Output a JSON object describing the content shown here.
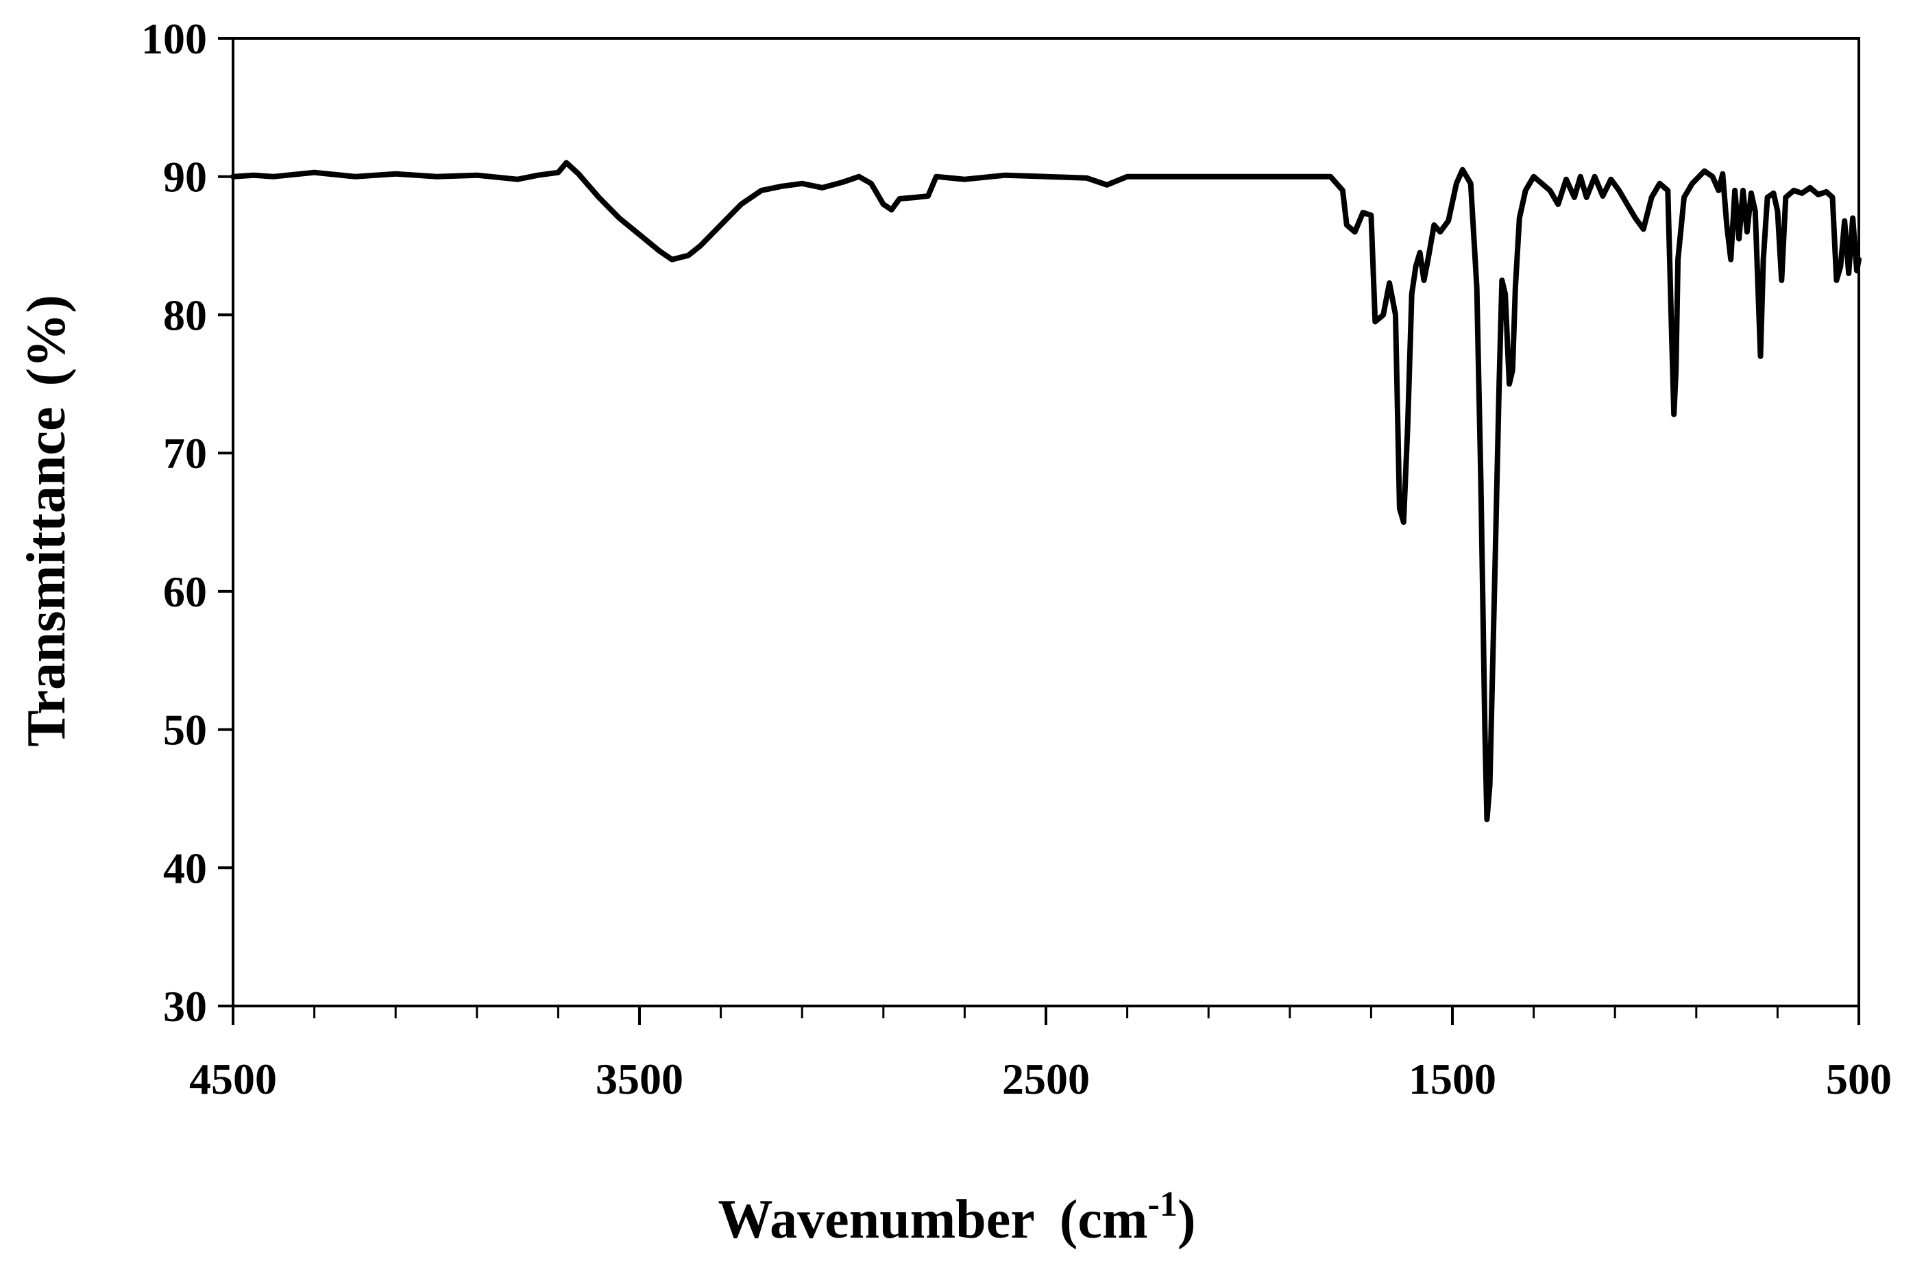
{
  "chart_data": {
    "type": "line",
    "title": "",
    "xlabel": "Wavenumber",
    "xlabel_unit_base": "(cm",
    "xlabel_unit_sup": "-1",
    "xlabel_unit_close": ")",
    "ylabel": "Transmittance",
    "ylabel_unit": "(%)",
    "xlim": [
      4500,
      500
    ],
    "ylim": [
      30,
      100
    ],
    "x_reversed": true,
    "x_ticks": [
      4500,
      3500,
      2500,
      1500,
      500
    ],
    "x_tick_labels": [
      "4500",
      "3500",
      "2500",
      "1500",
      "500"
    ],
    "x_minor_step": 200,
    "y_ticks": [
      30,
      40,
      50,
      60,
      70,
      80,
      90,
      100
    ],
    "y_tick_labels": [
      "30",
      "40",
      "50",
      "60",
      "70",
      "80",
      "90",
      "100"
    ],
    "grid": false,
    "legend": "none",
    "line_color": "#000000",
    "series": [
      {
        "points": [
          [
            4500,
            90.0
          ],
          [
            4450,
            90.1
          ],
          [
            4400,
            90.0
          ],
          [
            4300,
            90.3
          ],
          [
            4200,
            90.0
          ],
          [
            4100,
            90.2
          ],
          [
            4000,
            90.0
          ],
          [
            3900,
            90.1
          ],
          [
            3800,
            89.8
          ],
          [
            3750,
            90.1
          ],
          [
            3700,
            90.3
          ],
          [
            3680,
            91.0
          ],
          [
            3650,
            90.2
          ],
          [
            3600,
            88.5
          ],
          [
            3550,
            87.0
          ],
          [
            3500,
            85.8
          ],
          [
            3450,
            84.6
          ],
          [
            3420,
            84.0
          ],
          [
            3380,
            84.3
          ],
          [
            3350,
            85.0
          ],
          [
            3300,
            86.5
          ],
          [
            3250,
            88.0
          ],
          [
            3200,
            89.0
          ],
          [
            3150,
            89.3
          ],
          [
            3100,
            89.5
          ],
          [
            3050,
            89.2
          ],
          [
            3000,
            89.6
          ],
          [
            2960,
            90.0
          ],
          [
            2930,
            89.5
          ],
          [
            2900,
            88.0
          ],
          [
            2880,
            87.6
          ],
          [
            2860,
            88.4
          ],
          [
            2820,
            88.5
          ],
          [
            2790,
            88.6
          ],
          [
            2770,
            90.0
          ],
          [
            2700,
            89.8
          ],
          [
            2600,
            90.1
          ],
          [
            2500,
            90.0
          ],
          [
            2400,
            89.9
          ],
          [
            2350,
            89.4
          ],
          [
            2300,
            90.0
          ],
          [
            2200,
            90.0
          ],
          [
            2100,
            90.0
          ],
          [
            2000,
            90.0
          ],
          [
            1900,
            90.0
          ],
          [
            1800,
            90.0
          ],
          [
            1770,
            89.0
          ],
          [
            1760,
            86.5
          ],
          [
            1740,
            86.0
          ],
          [
            1720,
            87.4
          ],
          [
            1700,
            87.2
          ],
          [
            1690,
            79.5
          ],
          [
            1670,
            80.0
          ],
          [
            1655,
            82.3
          ],
          [
            1640,
            80.0
          ],
          [
            1630,
            66.0
          ],
          [
            1620,
            65.0
          ],
          [
            1610,
            72.0
          ],
          [
            1600,
            81.5
          ],
          [
            1590,
            83.5
          ],
          [
            1580,
            84.5
          ],
          [
            1570,
            82.5
          ],
          [
            1560,
            84.0
          ],
          [
            1545,
            86.5
          ],
          [
            1530,
            86.0
          ],
          [
            1510,
            86.8
          ],
          [
            1490,
            89.5
          ],
          [
            1475,
            90.5
          ],
          [
            1455,
            89.5
          ],
          [
            1440,
            82.0
          ],
          [
            1430,
            68.0
          ],
          [
            1420,
            50.0
          ],
          [
            1415,
            43.5
          ],
          [
            1408,
            46.0
          ],
          [
            1395,
            62.0
          ],
          [
            1385,
            75.0
          ],
          [
            1378,
            82.5
          ],
          [
            1370,
            81.5
          ],
          [
            1360,
            75.0
          ],
          [
            1352,
            76.0
          ],
          [
            1345,
            82.0
          ],
          [
            1335,
            87.0
          ],
          [
            1320,
            89.0
          ],
          [
            1300,
            90.0
          ],
          [
            1280,
            89.5
          ],
          [
            1260,
            89.0
          ],
          [
            1240,
            88.0
          ],
          [
            1220,
            89.8
          ],
          [
            1200,
            88.5
          ],
          [
            1185,
            90.0
          ],
          [
            1170,
            88.5
          ],
          [
            1150,
            90.0
          ],
          [
            1130,
            88.6
          ],
          [
            1110,
            89.8
          ],
          [
            1090,
            89.0
          ],
          [
            1070,
            88.0
          ],
          [
            1050,
            87.0
          ],
          [
            1030,
            86.2
          ],
          [
            1010,
            88.5
          ],
          [
            990,
            89.5
          ],
          [
            970,
            89.0
          ],
          [
            960,
            78.0
          ],
          [
            955,
            72.8
          ],
          [
            950,
            76.0
          ],
          [
            945,
            84.0
          ],
          [
            930,
            88.5
          ],
          [
            910,
            89.5
          ],
          [
            880,
            90.4
          ],
          [
            860,
            90.0
          ],
          [
            845,
            89.0
          ],
          [
            835,
            90.2
          ],
          [
            825,
            86.5
          ],
          [
            815,
            84.0
          ],
          [
            805,
            89.0
          ],
          [
            795,
            85.5
          ],
          [
            785,
            89.0
          ],
          [
            775,
            86.0
          ],
          [
            765,
            88.8
          ],
          [
            755,
            87.5
          ],
          [
            742,
            77.0
          ],
          [
            735,
            84.0
          ],
          [
            725,
            88.5
          ],
          [
            710,
            88.8
          ],
          [
            700,
            87.5
          ],
          [
            690,
            82.5
          ],
          [
            680,
            88.5
          ],
          [
            660,
            89.0
          ],
          [
            640,
            88.8
          ],
          [
            620,
            89.2
          ],
          [
            600,
            88.7
          ],
          [
            580,
            88.9
          ],
          [
            565,
            88.5
          ],
          [
            555,
            82.5
          ],
          [
            545,
            83.5
          ],
          [
            535,
            86.8
          ],
          [
            525,
            83.0
          ],
          [
            515,
            87.0
          ],
          [
            505,
            83.2
          ],
          [
            500,
            84.0
          ]
        ]
      }
    ]
  }
}
